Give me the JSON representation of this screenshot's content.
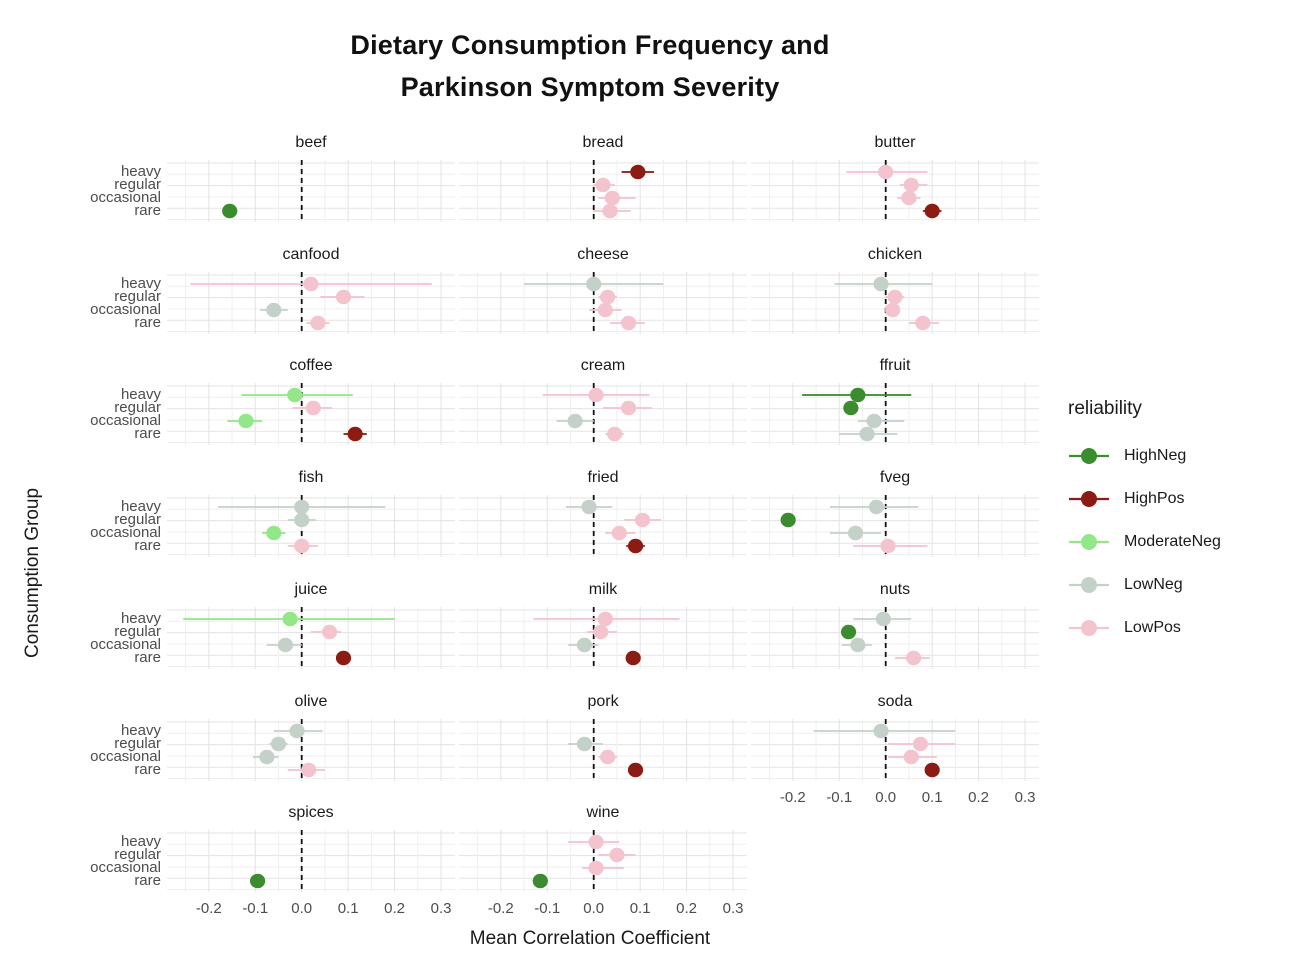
{
  "title": {
    "line1": "Dietary Consumption Frequency and",
    "line2": "Parkinson Symptom Severity"
  },
  "axes": {
    "x_label": "Mean Correlation Coefficient",
    "y_label": "Consumption Group",
    "x_tick_labels": [
      "-0.2",
      "-0.1",
      "0.0",
      "0.1",
      "0.2",
      "0.3"
    ],
    "x_tick_values": [
      -0.2,
      -0.1,
      0.0,
      0.1,
      0.2,
      0.3
    ],
    "x_range": [
      -0.29,
      0.33
    ],
    "y_categories": [
      "heavy",
      "regular",
      "occasional",
      "rare"
    ],
    "zero_reference_line": 0.0
  },
  "legend": {
    "title": "reliability",
    "entries": [
      {
        "label": "HighNeg",
        "color": "#3a8c2e"
      },
      {
        "label": "HighPos",
        "color": "#8c1c13"
      },
      {
        "label": "ModerateNeg",
        "color": "#93e788"
      },
      {
        "label": "LowNeg",
        "color": "#c4d1c9"
      },
      {
        "label": "LowPos",
        "color": "#f3c3ce"
      }
    ]
  },
  "chart_data": {
    "type": "scatter",
    "description": "Faceted dot plot with horizontal error bars; one facet per food, y = consumption group, x = mean correlation coefficient, color = reliability.",
    "grid": {
      "columns": 3,
      "gridlines": true,
      "legend_position": "right"
    },
    "facets": [
      {
        "name": "beef",
        "points": [
          {
            "group": "rare",
            "reliability": "HighNeg",
            "mean": -0.155,
            "lo": -0.165,
            "hi": -0.145
          }
        ]
      },
      {
        "name": "bread",
        "points": [
          {
            "group": "heavy",
            "reliability": "HighPos",
            "mean": 0.095,
            "lo": 0.06,
            "hi": 0.13
          },
          {
            "group": "regular",
            "reliability": "LowPos",
            "mean": 0.02,
            "lo": 0.0,
            "hi": 0.045
          },
          {
            "group": "occasional",
            "reliability": "LowPos",
            "mean": 0.04,
            "lo": 0.01,
            "hi": 0.09
          },
          {
            "group": "rare",
            "reliability": "LowPos",
            "mean": 0.035,
            "lo": 0.0,
            "hi": 0.08
          }
        ]
      },
      {
        "name": "butter",
        "points": [
          {
            "group": "heavy",
            "reliability": "LowPos",
            "mean": 0.0,
            "lo": -0.085,
            "hi": 0.09
          },
          {
            "group": "regular",
            "reliability": "LowPos",
            "mean": 0.055,
            "lo": 0.03,
            "hi": 0.09
          },
          {
            "group": "occasional",
            "reliability": "LowPos",
            "mean": 0.05,
            "lo": 0.025,
            "hi": 0.075
          },
          {
            "group": "rare",
            "reliability": "HighPos",
            "mean": 0.1,
            "lo": 0.08,
            "hi": 0.12
          }
        ]
      },
      {
        "name": "canfood",
        "points": [
          {
            "group": "heavy",
            "reliability": "LowPos",
            "mean": 0.02,
            "lo": -0.24,
            "hi": 0.28
          },
          {
            "group": "regular",
            "reliability": "LowPos",
            "mean": 0.09,
            "lo": 0.04,
            "hi": 0.135
          },
          {
            "group": "occasional",
            "reliability": "LowNeg",
            "mean": -0.06,
            "lo": -0.09,
            "hi": -0.03
          },
          {
            "group": "rare",
            "reliability": "LowPos",
            "mean": 0.035,
            "lo": 0.01,
            "hi": 0.06
          }
        ]
      },
      {
        "name": "cheese",
        "points": [
          {
            "group": "heavy",
            "reliability": "LowNeg",
            "mean": 0.0,
            "lo": -0.15,
            "hi": 0.15
          },
          {
            "group": "regular",
            "reliability": "LowPos",
            "mean": 0.03,
            "lo": 0.01,
            "hi": 0.05
          },
          {
            "group": "occasional",
            "reliability": "LowPos",
            "mean": 0.025,
            "lo": -0.01,
            "hi": 0.06
          },
          {
            "group": "rare",
            "reliability": "LowPos",
            "mean": 0.075,
            "lo": 0.035,
            "hi": 0.11
          }
        ]
      },
      {
        "name": "chicken",
        "points": [
          {
            "group": "heavy",
            "reliability": "LowNeg",
            "mean": -0.01,
            "lo": -0.11,
            "hi": 0.1
          },
          {
            "group": "regular",
            "reliability": "LowPos",
            "mean": 0.02,
            "lo": 0.0,
            "hi": 0.04
          },
          {
            "group": "occasional",
            "reliability": "LowPos",
            "mean": 0.015,
            "lo": 0.0,
            "hi": 0.03
          },
          {
            "group": "rare",
            "reliability": "LowPos",
            "mean": 0.08,
            "lo": 0.05,
            "hi": 0.115
          }
        ]
      },
      {
        "name": "coffee",
        "points": [
          {
            "group": "heavy",
            "reliability": "ModerateNeg",
            "mean": -0.015,
            "lo": -0.13,
            "hi": 0.11
          },
          {
            "group": "regular",
            "reliability": "LowPos",
            "mean": 0.025,
            "lo": -0.02,
            "hi": 0.065
          },
          {
            "group": "occasional",
            "reliability": "ModerateNeg",
            "mean": -0.12,
            "lo": -0.16,
            "hi": -0.085
          },
          {
            "group": "rare",
            "reliability": "HighPos",
            "mean": 0.115,
            "lo": 0.09,
            "hi": 0.14
          }
        ]
      },
      {
        "name": "cream",
        "points": [
          {
            "group": "heavy",
            "reliability": "LowPos",
            "mean": 0.005,
            "lo": -0.11,
            "hi": 0.12
          },
          {
            "group": "regular",
            "reliability": "LowPos",
            "mean": 0.075,
            "lo": 0.02,
            "hi": 0.125
          },
          {
            "group": "occasional",
            "reliability": "LowNeg",
            "mean": -0.04,
            "lo": -0.08,
            "hi": 0.0
          },
          {
            "group": "rare",
            "reliability": "LowPos",
            "mean": 0.045,
            "lo": 0.025,
            "hi": 0.065
          }
        ]
      },
      {
        "name": "ffruit",
        "points": [
          {
            "group": "heavy",
            "reliability": "HighNeg",
            "mean": -0.06,
            "lo": -0.18,
            "hi": 0.055
          },
          {
            "group": "regular",
            "reliability": "HighNeg",
            "mean": -0.075,
            "lo": -0.09,
            "hi": -0.06
          },
          {
            "group": "occasional",
            "reliability": "LowNeg",
            "mean": -0.025,
            "lo": -0.06,
            "hi": 0.04
          },
          {
            "group": "rare",
            "reliability": "LowNeg",
            "mean": -0.04,
            "lo": -0.1,
            "hi": 0.025
          }
        ]
      },
      {
        "name": "fish",
        "points": [
          {
            "group": "heavy",
            "reliability": "LowNeg",
            "mean": 0.0,
            "lo": -0.18,
            "hi": 0.18
          },
          {
            "group": "regular",
            "reliability": "LowNeg",
            "mean": 0.0,
            "lo": -0.03,
            "hi": 0.03
          },
          {
            "group": "occasional",
            "reliability": "ModerateNeg",
            "mean": -0.06,
            "lo": -0.085,
            "hi": -0.035
          },
          {
            "group": "rare",
            "reliability": "LowPos",
            "mean": 0.0,
            "lo": -0.03,
            "hi": 0.035
          }
        ]
      },
      {
        "name": "fried",
        "points": [
          {
            "group": "heavy",
            "reliability": "LowNeg",
            "mean": -0.01,
            "lo": -0.06,
            "hi": 0.04
          },
          {
            "group": "regular",
            "reliability": "LowPos",
            "mean": 0.105,
            "lo": 0.065,
            "hi": 0.145
          },
          {
            "group": "occasional",
            "reliability": "LowPos",
            "mean": 0.055,
            "lo": 0.025,
            "hi": 0.09
          },
          {
            "group": "rare",
            "reliability": "HighPos",
            "mean": 0.09,
            "lo": 0.07,
            "hi": 0.11
          }
        ]
      },
      {
        "name": "fveg",
        "points": [
          {
            "group": "heavy",
            "reliability": "LowNeg",
            "mean": -0.02,
            "lo": -0.12,
            "hi": 0.07
          },
          {
            "group": "regular",
            "reliability": "HighNeg",
            "mean": -0.21,
            "lo": -0.22,
            "hi": -0.2
          },
          {
            "group": "occasional",
            "reliability": "LowNeg",
            "mean": -0.065,
            "lo": -0.12,
            "hi": -0.01
          },
          {
            "group": "rare",
            "reliability": "LowPos",
            "mean": 0.005,
            "lo": -0.07,
            "hi": 0.09
          }
        ]
      },
      {
        "name": "juice",
        "points": [
          {
            "group": "heavy",
            "reliability": "ModerateNeg",
            "mean": -0.025,
            "lo": -0.255,
            "hi": 0.2
          },
          {
            "group": "regular",
            "reliability": "LowPos",
            "mean": 0.06,
            "lo": 0.02,
            "hi": 0.085
          },
          {
            "group": "occasional",
            "reliability": "LowNeg",
            "mean": -0.035,
            "lo": -0.075,
            "hi": 0.0
          },
          {
            "group": "rare",
            "reliability": "HighPos",
            "mean": 0.09,
            "lo": 0.075,
            "hi": 0.105
          }
        ]
      },
      {
        "name": "milk",
        "points": [
          {
            "group": "heavy",
            "reliability": "LowPos",
            "mean": 0.025,
            "lo": -0.13,
            "hi": 0.185
          },
          {
            "group": "regular",
            "reliability": "LowPos",
            "mean": 0.015,
            "lo": -0.015,
            "hi": 0.05
          },
          {
            "group": "occasional",
            "reliability": "LowNeg",
            "mean": -0.02,
            "lo": -0.055,
            "hi": 0.01
          },
          {
            "group": "rare",
            "reliability": "HighPos",
            "mean": 0.085,
            "lo": 0.07,
            "hi": 0.1
          }
        ]
      },
      {
        "name": "nuts",
        "points": [
          {
            "group": "heavy",
            "reliability": "LowNeg",
            "mean": -0.005,
            "lo": -0.07,
            "hi": 0.055
          },
          {
            "group": "regular",
            "reliability": "HighNeg",
            "mean": -0.08,
            "lo": -0.09,
            "hi": -0.07
          },
          {
            "group": "occasional",
            "reliability": "LowNeg",
            "mean": -0.06,
            "lo": -0.095,
            "hi": -0.03
          },
          {
            "group": "rare",
            "reliability": "LowPos",
            "mean": 0.06,
            "lo": 0.02,
            "hi": 0.095
          }
        ]
      },
      {
        "name": "olive",
        "points": [
          {
            "group": "heavy",
            "reliability": "LowNeg",
            "mean": -0.01,
            "lo": -0.06,
            "hi": 0.045
          },
          {
            "group": "regular",
            "reliability": "LowNeg",
            "mean": -0.05,
            "lo": -0.07,
            "hi": -0.03
          },
          {
            "group": "occasional",
            "reliability": "LowNeg",
            "mean": -0.075,
            "lo": -0.105,
            "hi": -0.05
          },
          {
            "group": "rare",
            "reliability": "LowPos",
            "mean": 0.015,
            "lo": -0.03,
            "hi": 0.05
          }
        ]
      },
      {
        "name": "pork",
        "points": [
          {
            "group": "regular",
            "reliability": "LowNeg",
            "mean": -0.02,
            "lo": -0.055,
            "hi": 0.02
          },
          {
            "group": "occasional",
            "reliability": "LowPos",
            "mean": 0.03,
            "lo": 0.01,
            "hi": 0.05
          },
          {
            "group": "rare",
            "reliability": "HighPos",
            "mean": 0.09,
            "lo": 0.075,
            "hi": 0.105
          }
        ]
      },
      {
        "name": "soda",
        "points": [
          {
            "group": "heavy",
            "reliability": "LowNeg",
            "mean": -0.01,
            "lo": -0.155,
            "hi": 0.15
          },
          {
            "group": "regular",
            "reliability": "LowPos",
            "mean": 0.075,
            "lo": 0.005,
            "hi": 0.15
          },
          {
            "group": "occasional",
            "reliability": "LowPos",
            "mean": 0.055,
            "lo": 0.005,
            "hi": 0.11
          },
          {
            "group": "rare",
            "reliability": "HighPos",
            "mean": 0.1,
            "lo": 0.085,
            "hi": 0.115
          }
        ]
      },
      {
        "name": "spices",
        "points": [
          {
            "group": "rare",
            "reliability": "HighNeg",
            "mean": -0.095,
            "lo": -0.105,
            "hi": -0.085
          }
        ]
      },
      {
        "name": "wine",
        "points": [
          {
            "group": "heavy",
            "reliability": "LowPos",
            "mean": 0.005,
            "lo": -0.055,
            "hi": 0.055
          },
          {
            "group": "regular",
            "reliability": "LowPos",
            "mean": 0.05,
            "lo": 0.01,
            "hi": 0.09
          },
          {
            "group": "occasional",
            "reliability": "LowPos",
            "mean": 0.005,
            "lo": -0.025,
            "hi": 0.065
          },
          {
            "group": "rare",
            "reliability": "HighNeg",
            "mean": -0.115,
            "lo": -0.125,
            "hi": -0.105
          }
        ]
      }
    ]
  },
  "style_colors": {
    "grid_major": "#e3e3e3",
    "grid_minor": "#efefef",
    "axis_text": "#4d4d4d",
    "text": "#1a1a1a",
    "zero_line": "#111111",
    "background": "#ffffff"
  }
}
